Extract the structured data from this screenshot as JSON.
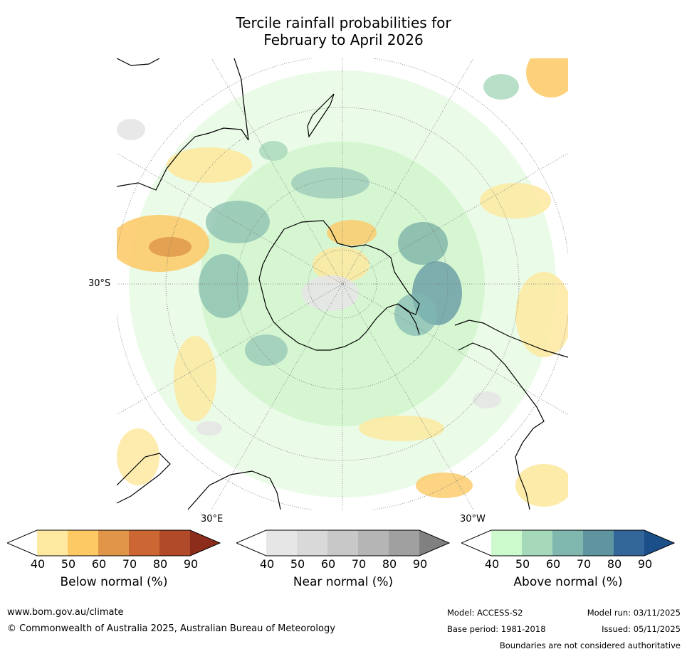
{
  "title_line1": "Tercile rainfall probabilities for",
  "title_line2": "February to April 2026",
  "map_labels": {
    "lat": "30°S",
    "lon_east": "30°E",
    "lon_west": "30°W"
  },
  "colorbars": [
    {
      "title": "Below normal (%)",
      "ticks": [
        "40",
        "50",
        "60",
        "70",
        "80",
        "90"
      ],
      "colors": [
        "#ffffff",
        "#fde9a0",
        "#fdc965",
        "#e09548",
        "#cc6633",
        "#b04a28",
        "#8c2d1c"
      ]
    },
    {
      "title": "Near normal (%)",
      "ticks": [
        "40",
        "50",
        "60",
        "70",
        "80",
        "90"
      ],
      "colors": [
        "#ffffff",
        "#e6e6e6",
        "#d9d9d9",
        "#c8c8c8",
        "#b5b5b5",
        "#a0a0a0",
        "#808080"
      ]
    },
    {
      "title": "Above normal (%)",
      "ticks": [
        "40",
        "50",
        "60",
        "70",
        "80",
        "90"
      ],
      "colors": [
        "#ffffff",
        "#ccfacc",
        "#a6d8ba",
        "#80b8b0",
        "#5f95a0",
        "#336699",
        "#1a4f8a"
      ]
    }
  ],
  "footer": {
    "url": "www.bom.gov.au/climate",
    "copyright": "© Commonwealth of Australia 2025, Australian Bureau of Meteorology",
    "model": "Model: ACCESS-S2",
    "base_period": "Base period: 1981-2018",
    "model_run": "Model run: 03/11/2025",
    "issued": "Issued: 05/11/2025",
    "disclaimer": "Boundaries are not considered authoritative"
  }
}
